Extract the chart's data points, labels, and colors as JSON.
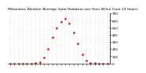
{
  "title": "Milwaukee Weather Average Solar Radiation per Hour W/m2 (Last 24 Hours)",
  "hours": [
    0,
    1,
    2,
    3,
    4,
    5,
    6,
    7,
    8,
    9,
    10,
    11,
    12,
    13,
    14,
    15,
    16,
    17,
    18,
    19,
    20,
    21,
    22,
    23
  ],
  "values": [
    0,
    0,
    0,
    0,
    0,
    0,
    2,
    15,
    80,
    200,
    360,
    490,
    580,
    620,
    560,
    430,
    280,
    130,
    40,
    8,
    1,
    0,
    0,
    0
  ],
  "line_color": "#ff0000",
  "bg_color": "#ffffff",
  "grid_color": "#999999",
  "ylim": [
    0,
    700
  ],
  "yticks": [
    0,
    100,
    200,
    300,
    400,
    500,
    600,
    700
  ],
  "xlim": [
    -0.5,
    23.5
  ],
  "xticks": [
    0,
    1,
    2,
    3,
    4,
    5,
    6,
    7,
    8,
    9,
    10,
    11,
    12,
    13,
    14,
    15,
    16,
    17,
    18,
    19,
    20,
    21,
    22,
    23
  ],
  "title_fontsize": 3.2,
  "tick_fontsize": 3.0,
  "markersize": 1.8,
  "linewidth": 0.0
}
